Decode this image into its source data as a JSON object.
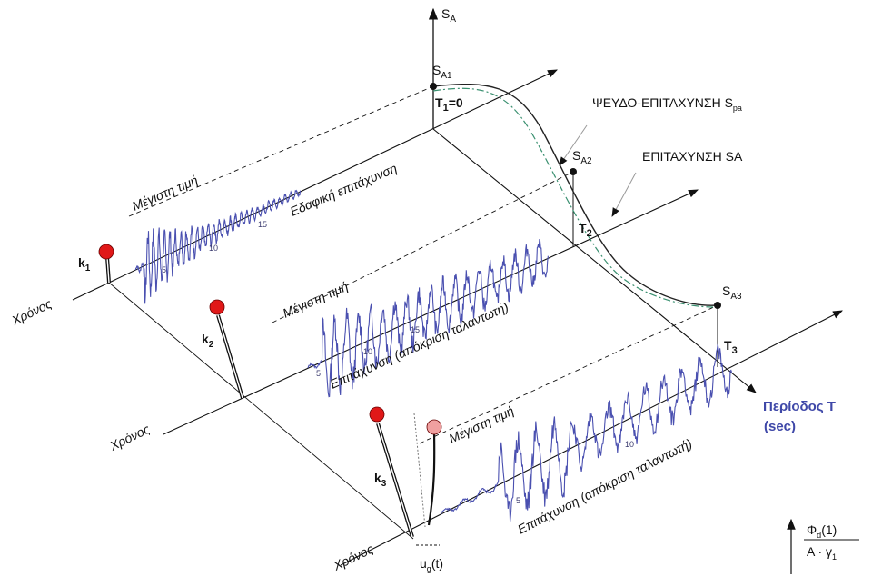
{
  "axes": {
    "sa_main": "S",
    "sa_main_sub": "A",
    "period": "Περίοδος Τ",
    "period_unit": "(sec)"
  },
  "points": {
    "sa1": "S",
    "sa1_sub": "A1",
    "sa2": "S",
    "sa2_sub": "A2",
    "sa3": "S",
    "sa3_sub": "A3",
    "t1": "T",
    "t1_sub": "1",
    "t1_eq": "=0",
    "t2": "T",
    "t2_sub": "2",
    "t3": "T",
    "t3_sub": "3"
  },
  "curves": {
    "pseudo_label": "ΨΕΥΔΟ-ΕΠΙΤΑΧΥΝΣΗ S",
    "pseudo_sub": "pa",
    "accel_label": "ΕΠΙΤΑΧΥΝΣΗ SA"
  },
  "oscillators": {
    "k1": "k",
    "k1_sub": "1",
    "k2": "k",
    "k2_sub": "2",
    "k3": "k",
    "k3_sub": "3"
  },
  "time_axes": {
    "label1": "Χρόνος",
    "label2": "Χρόνος",
    "label3": "Χρόνος"
  },
  "records": {
    "peak1": "Μέγιστη τιμή",
    "peak2": "Μέγιστη τιμή",
    "peak3": "Μέγιστη τιμή",
    "ground": "Εδαφική επιτάχυνση",
    "resp2": "Επιτάχυνση (απόκριση ταλαντωτή)",
    "resp3": "Επιτάχυνση (απόκριση ταλαντωτή)",
    "tick5": "5",
    "tick10": "10",
    "tick15": "15"
  },
  "ground_disp": {
    "u": "u",
    "u_sub": "g",
    "u_arg": "(t)"
  },
  "formula": {
    "numerator": "Φ",
    "numerator_sub": "d",
    "numerator_arg": "(1)",
    "denominator": "A · γ",
    "denominator_sub": "1"
  },
  "colors": {
    "trace": "#4a50b0",
    "mass_red": "#e01818",
    "mass_pink": "#f0a0a0",
    "pseudo_curve": "#3a9070",
    "period_label": "#3f48a8"
  }
}
